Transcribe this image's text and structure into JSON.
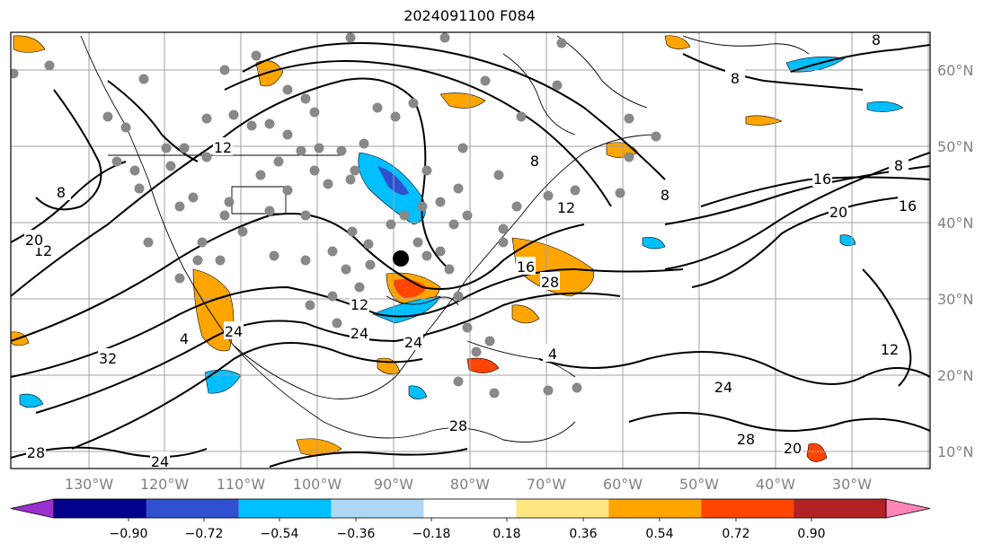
{
  "title": "2024091100 F084",
  "map": {
    "lon_labels": [
      "130°W",
      "120°W",
      "110°W",
      "100°W",
      "90°W",
      "80°W",
      "70°W",
      "60°W",
      "50°W",
      "40°W",
      "30°W"
    ],
    "lat_labels": [
      "60°N",
      "50°N",
      "40°N",
      "30°N",
      "20°N",
      "10°N"
    ],
    "contour_labels": [
      "8",
      "8",
      "8",
      "8",
      "8",
      "8",
      "12",
      "12",
      "12",
      "12",
      "12",
      "16",
      "16",
      "16",
      "20",
      "20",
      "20",
      "24",
      "24",
      "24",
      "24",
      "24",
      "28",
      "28",
      "28",
      "28",
      "32",
      "4",
      "4"
    ],
    "marker": "black-dot"
  },
  "colorbar": {
    "ticks": [
      "−0.90",
      "−0.72",
      "−0.54",
      "−0.36",
      "−0.18",
      "0.18",
      "0.36",
      "0.54",
      "0.72",
      "0.90"
    ],
    "colors": [
      "#9b30d0",
      "#00008b",
      "#3050d0",
      "#00bfff",
      "#add8f5",
      "#ffffff",
      "#ffe680",
      "#ffa500",
      "#ff4500",
      "#b22222",
      "#ff85b5"
    ]
  }
}
